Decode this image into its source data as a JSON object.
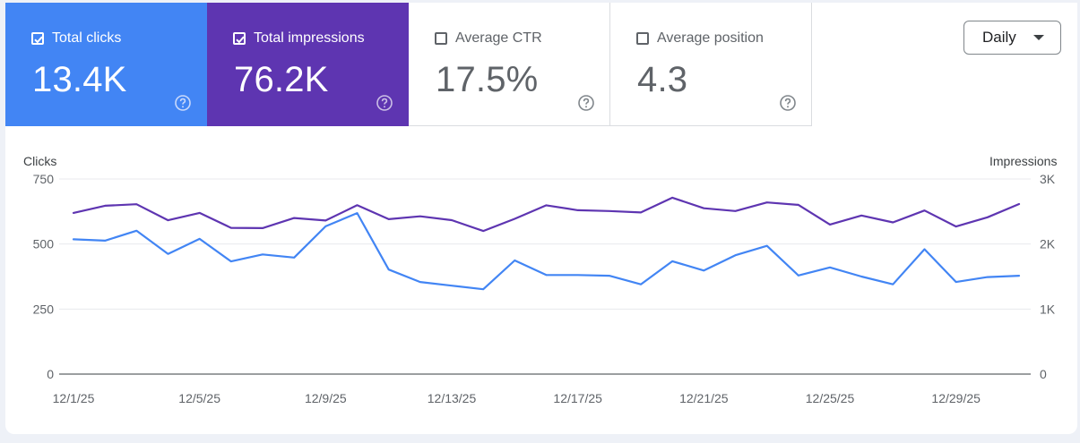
{
  "metrics": {
    "clicks": {
      "label": "Total clicks",
      "value": "13.4K",
      "checked": true,
      "color": "#4285f4"
    },
    "impressions": {
      "label": "Total impressions",
      "value": "76.2K",
      "checked": true,
      "color": "#5e35b1"
    },
    "ctr": {
      "label": "Average CTR",
      "value": "17.5%",
      "checked": false
    },
    "position": {
      "label": "Average position",
      "value": "4.3",
      "checked": false
    }
  },
  "period_select": {
    "value": "Daily"
  },
  "chart_data": {
    "type": "line",
    "left_axis_label": "Clicks",
    "right_axis_label": "Impressions",
    "left_ticks": [
      "0",
      "250",
      "500",
      "750"
    ],
    "right_ticks": [
      "0",
      "1K",
      "2K",
      "3K"
    ],
    "left_ylim": [
      0,
      750
    ],
    "right_ylim": [
      0,
      3000
    ],
    "x_tick_labels": [
      "12/1/25",
      "12/5/25",
      "12/9/25",
      "12/13/25",
      "12/17/25",
      "12/21/25",
      "12/25/25",
      "12/29/25"
    ],
    "x": [
      "12/1/25",
      "12/2/25",
      "12/3/25",
      "12/4/25",
      "12/5/25",
      "12/6/25",
      "12/7/25",
      "12/8/25",
      "12/9/25",
      "12/10/25",
      "12/11/25",
      "12/12/25",
      "12/13/25",
      "12/14/25",
      "12/15/25",
      "12/16/25",
      "12/17/25",
      "12/18/25",
      "12/19/25",
      "12/20/25",
      "12/21/25",
      "12/22/25",
      "12/23/25",
      "12/24/25",
      "12/25/25",
      "12/26/25",
      "12/27/25",
      "12/28/25",
      "12/29/25",
      "12/30/25",
      "12/31/25"
    ],
    "series": [
      {
        "name": "Clicks",
        "axis": "left",
        "color": "#4285f4",
        "values": [
          518,
          513,
          551,
          462,
          520,
          433,
          460,
          448,
          568,
          619,
          402,
          354,
          340,
          326,
          437,
          381,
          381,
          378,
          345,
          434,
          398,
          457,
          493,
          379,
          410,
          375,
          345,
          480,
          354,
          373,
          378
        ]
      },
      {
        "name": "Impressions",
        "axis": "right",
        "color": "#5e35b1",
        "values": [
          2478,
          2588,
          2612,
          2365,
          2478,
          2249,
          2244,
          2400,
          2362,
          2597,
          2382,
          2426,
          2367,
          2200,
          2387,
          2596,
          2520,
          2507,
          2486,
          2713,
          2550,
          2508,
          2640,
          2602,
          2300,
          2438,
          2333,
          2516,
          2269,
          2411,
          2614
        ]
      }
    ],
    "grid": true
  }
}
